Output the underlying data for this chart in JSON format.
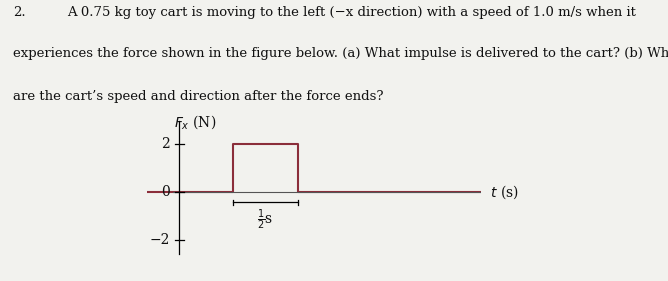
{
  "question_number": "2.",
  "question_text_line1": "A 0.75 kg toy cart is moving to the left (−x direction) with a speed of 1.0 m/s when it",
  "question_text_line2": "experiences the force shown in the figure below. (a) What impulse is delivered to the cart? (b) What",
  "question_text_line3": "are the cart’s speed and direction after the force ends?",
  "ylabel": "$F_x$ (N)",
  "xlabel": "$t$ (s)",
  "ytick_vals": [
    2,
    0,
    -2
  ],
  "ytick_labels": [
    "2",
    "0",
    "−2"
  ],
  "ylim": [
    -3.5,
    3.2
  ],
  "xlim": [
    -0.3,
    2.8
  ],
  "pulse_start": 0.5,
  "pulse_end": 1.1,
  "pulse_height": 2.0,
  "line_color": "#8B2E3A",
  "axis_color": "#555555",
  "background_color": "#f2f2ee",
  "text_color": "#111111",
  "font_size_question": 9.5,
  "font_size_axis_label": 10,
  "font_size_tick": 10,
  "annotation_label": "$\\frac{1}{2}$s"
}
